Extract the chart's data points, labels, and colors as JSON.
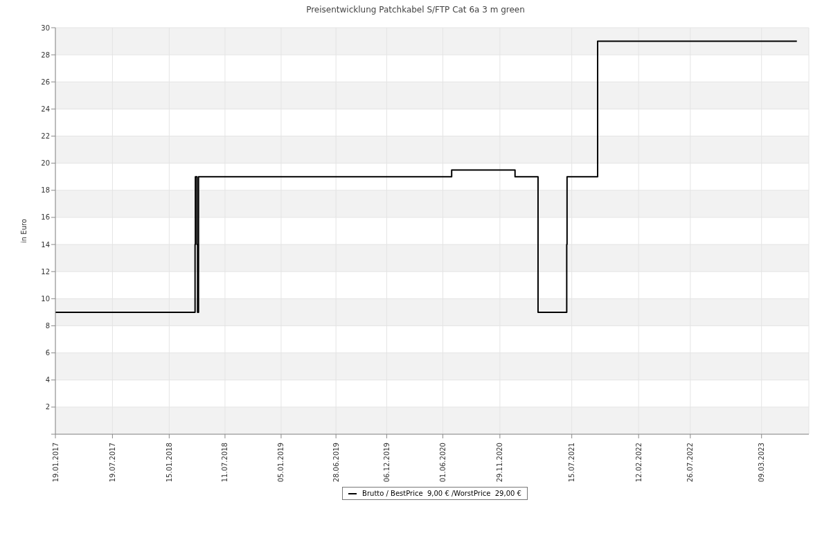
{
  "chart_data": {
    "type": "step",
    "title": "Preisentwicklung Patchkabel S/FTP Cat 6a 3 m green",
    "ylabel": "in Euro",
    "series": [
      {
        "name": "Brutto / BestPrice  9,00 € /WorstPrice  29,00 €",
        "color": "#000000",
        "x": [
          "2017-01-19",
          "2018-04-07",
          "2018-04-08",
          "2018-04-13",
          "2018-04-15",
          "2018-04-18",
          "2020-06-29",
          "2021-01-16",
          "2021-03-30",
          "2021-06-29",
          "2021-06-30",
          "2021-10-05",
          "2023-06-29"
        ],
        "values": [
          9,
          14,
          19,
          14,
          9,
          19,
          19.5,
          19,
          9,
          14,
          19,
          29,
          29
        ]
      }
    ],
    "xlim": [
      "2017-01-19",
      "2023-08-06"
    ],
    "xticks": [
      {
        "value": "2017-01-19",
        "label": "19.01.2017"
      },
      {
        "value": "2017-07-19",
        "label": "19.07.2017"
      },
      {
        "value": "2018-01-15",
        "label": "15.01.2018"
      },
      {
        "value": "2018-07-11",
        "label": "11.07.2018"
      },
      {
        "value": "2019-01-05",
        "label": "05.01.2019"
      },
      {
        "value": "2019-06-28",
        "label": "28.06.2019"
      },
      {
        "value": "2019-12-06",
        "label": "06.12.2019"
      },
      {
        "value": "2020-06-01",
        "label": "01.06.2020"
      },
      {
        "value": "2020-11-29",
        "label": "29.11.2020"
      },
      {
        "value": "2021-07-15",
        "label": "15.07.2021"
      },
      {
        "value": "2022-02-12",
        "label": "12.02.2022"
      },
      {
        "value": "2022-07-26",
        "label": "26.07.2022"
      },
      {
        "value": "2023-03-09",
        "label": "09.03.2023"
      }
    ],
    "ylim": [
      0,
      30
    ],
    "yticks": [
      {
        "value": 0,
        "label": null
      },
      2,
      4,
      6,
      8,
      10,
      12,
      14,
      16,
      18,
      20,
      22,
      24,
      26,
      28,
      30
    ],
    "grid": true,
    "legend": "bottom",
    "marker": "none",
    "line_style": "solid"
  }
}
